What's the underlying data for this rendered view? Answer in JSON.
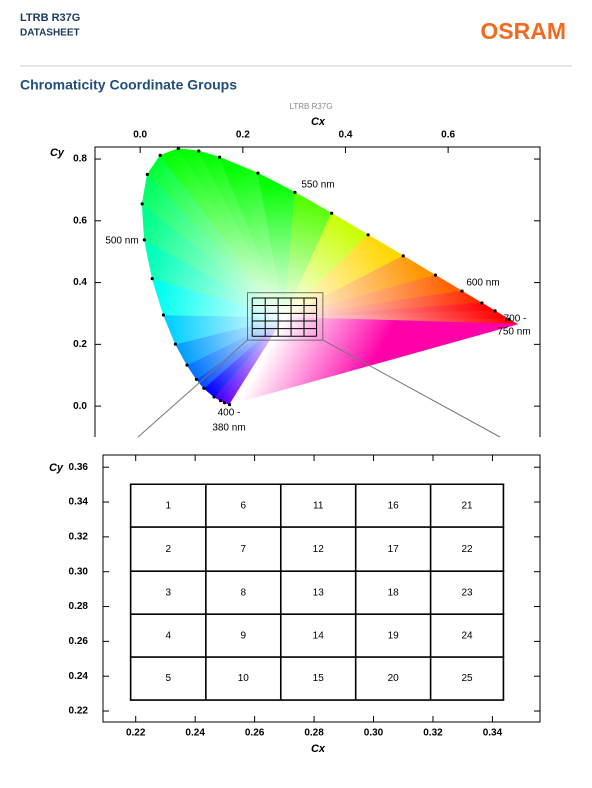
{
  "header": {
    "product": "LTRB R37G",
    "doc_type": "DATASHEET",
    "logo": "OSRAM"
  },
  "section_title": "Chromaticity Coordinate Groups",
  "overview": {
    "title": "LTRB R37G",
    "x_label": "Cx",
    "y_label": "Cy",
    "xlim": [
      -0.088,
      0.779
    ],
    "ylim": [
      -0.1,
      0.839
    ],
    "xticks": [
      {
        "value": 0,
        "label": "0.0"
      },
      0.2,
      0.4,
      0.6
    ],
    "yticks": [
      {
        "value": 0,
        "label": "0.0"
      },
      0.2,
      0.4,
      0.6,
      0.8
    ],
    "locus_cx": [
      0.1741,
      0.1644,
      0.1566,
      0.144,
      0.1241,
      0.1096,
      0.0913,
      0.0687,
      0.0454,
      0.0235,
      0.0082,
      0.0039,
      0.0139,
      0.0389,
      0.0743,
      0.1142,
      0.1547,
      0.2296,
      0.3016,
      0.3731,
      0.4441,
      0.5125,
      0.5752,
      0.627,
      0.6658,
      0.6915,
      0.719,
      0.7347
    ],
    "locus_cy": [
      0.005,
      0.0109,
      0.0177,
      0.0297,
      0.0578,
      0.0868,
      0.1327,
      0.2007,
      0.295,
      0.4127,
      0.5384,
      0.6548,
      0.7502,
      0.812,
      0.8338,
      0.8262,
      0.8059,
      0.7543,
      0.6923,
      0.6245,
      0.5547,
      0.4866,
      0.4242,
      0.3725,
      0.334,
      0.3083,
      0.2809,
      0.2653
    ],
    "wavelength_labels": [
      "550 nm",
      "500 nm",
      "600 nm",
      "700 -",
      "750 nm",
      "400 -",
      "380 nm"
    ]
  },
  "detail": {
    "x_label": "Cx",
    "y_label": "Cy",
    "xlim": [
      0.209,
      0.356
    ],
    "ylim": [
      0.2137,
      0.367
    ],
    "xticks": [
      0.22,
      0.24,
      0.26,
      0.28,
      {
        "value": 0.3,
        "label": "0.30"
      },
      0.32,
      0.34
    ],
    "yticks": [
      0.22,
      0.24,
      0.26,
      0.28,
      {
        "value": 0.3,
        "label": "0.30"
      },
      0.32,
      0.34,
      0.36
    ]
  },
  "groups": {
    "cx_edges": [
      0.2183,
      0.2436,
      0.2688,
      0.294,
      0.3192,
      0.3437
    ],
    "cy_edges": [
      0.3502,
      0.3256,
      0.3003,
      0.2756,
      0.251,
      0.2263
    ],
    "labels": [
      [
        1,
        6,
        11,
        16,
        21
      ],
      [
        2,
        7,
        12,
        17,
        22
      ],
      [
        3,
        8,
        13,
        18,
        23
      ],
      [
        4,
        9,
        14,
        19,
        24
      ],
      [
        5,
        10,
        15,
        20,
        25
      ]
    ]
  }
}
